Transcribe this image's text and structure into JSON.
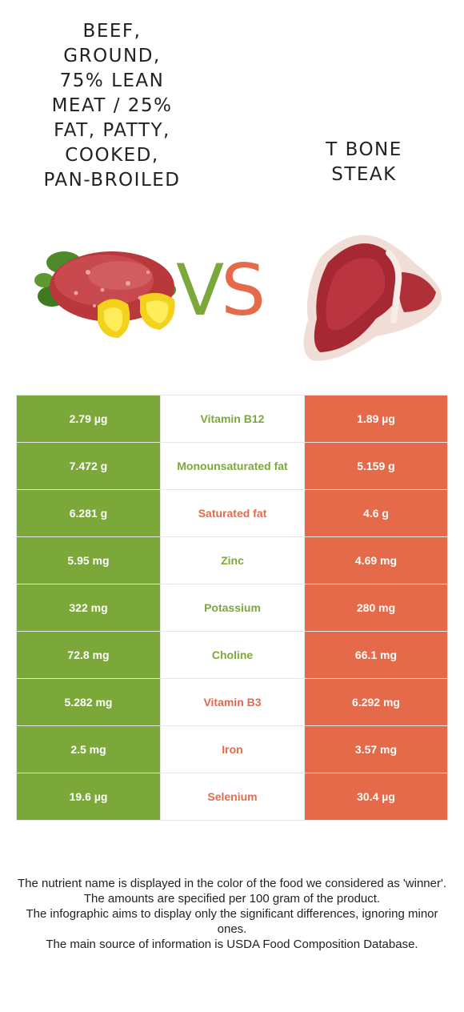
{
  "left_food": {
    "title": "BEEF,\nGROUND,\n75% LEAN\nMEAT / 25%\nFAT, PATTY,\nCOOKED,\nPAN-BROILED",
    "image": "ground-beef-patty-with-peppers-image",
    "color": "#7ca83a"
  },
  "right_food": {
    "title": "T BONE\nSTEAK",
    "image": "t-bone-steak-image",
    "color": "#e46a4a"
  },
  "vs": {
    "v": "V",
    "s": "S"
  },
  "rows": [
    {
      "left": "2.79 µg",
      "name": "Vitamin B12",
      "right": "1.89 µg",
      "winner": "left"
    },
    {
      "left": "7.472 g",
      "name": "Monounsaturated fat",
      "right": "5.159 g",
      "winner": "left"
    },
    {
      "left": "6.281 g",
      "name": "Saturated fat",
      "right": "4.6 g",
      "winner": "right"
    },
    {
      "left": "5.95 mg",
      "name": "Zinc",
      "right": "4.69 mg",
      "winner": "left"
    },
    {
      "left": "322 mg",
      "name": "Potassium",
      "right": "280 mg",
      "winner": "left"
    },
    {
      "left": "72.8 mg",
      "name": "Choline",
      "right": "66.1 mg",
      "winner": "left"
    },
    {
      "left": "5.282 mg",
      "name": "Vitamin B3",
      "right": "6.292 mg",
      "winner": "right"
    },
    {
      "left": "2.5 mg",
      "name": "Iron",
      "right": "3.57 mg",
      "winner": "right"
    },
    {
      "left": "19.6 µg",
      "name": "Selenium",
      "right": "30.4 µg",
      "winner": "right"
    }
  ],
  "footnotes": [
    "The nutrient name is displayed in the color of the food we considered as 'winner'.",
    "The amounts are specified per 100 gram of the product.",
    "The infographic aims to display only the significant differences, ignoring minor ones.",
    "The main source of information is USDA Food Composition Database."
  ]
}
